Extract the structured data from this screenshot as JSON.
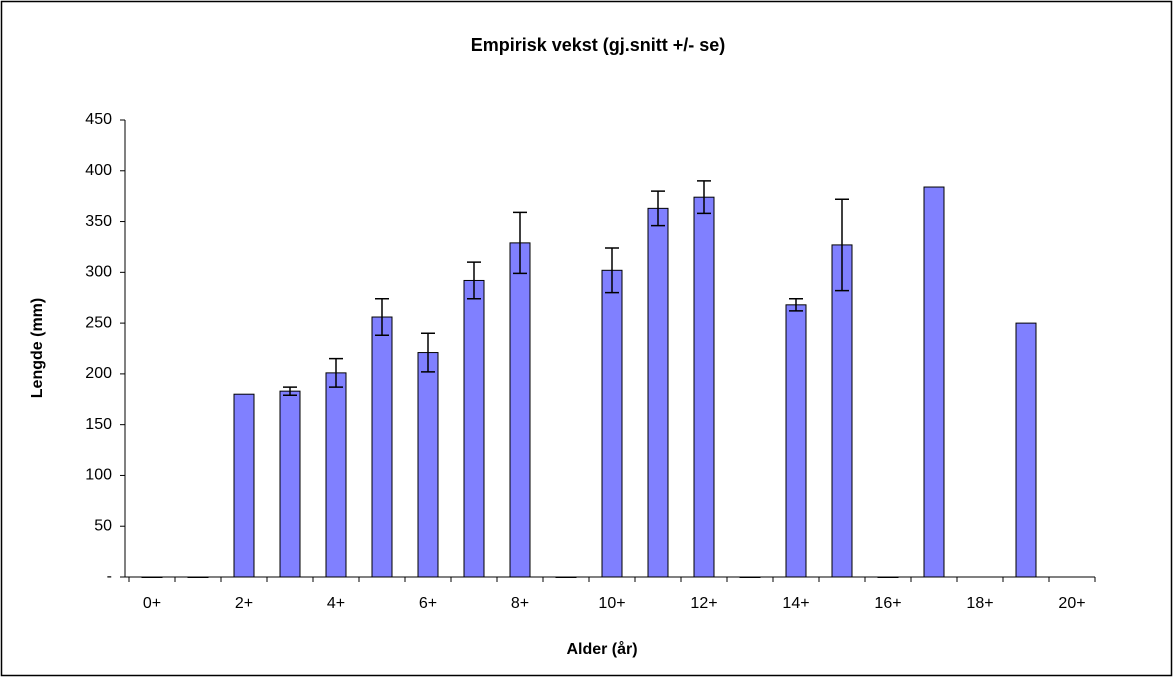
{
  "chart_data": {
    "type": "bar",
    "title": "Empirisk vekst (gj.snitt +/- se)",
    "x_label": "Alder (år)",
    "y_label": "Lengde (mm)",
    "categories": [
      "0+",
      null,
      "2+",
      null,
      "4+",
      null,
      "6+",
      null,
      "8+",
      null,
      "10+",
      null,
      "12+",
      null,
      "14+",
      null,
      "16+",
      null,
      "18+",
      null,
      "20+"
    ],
    "values": [
      0,
      0,
      180,
      183,
      201,
      256,
      221,
      292,
      329,
      0,
      302,
      363,
      374,
      0,
      268,
      327,
      0,
      384,
      null,
      250,
      null
    ],
    "errors": [
      null,
      null,
      null,
      4,
      14,
      18,
      19,
      18,
      30,
      null,
      22,
      17,
      16,
      null,
      6,
      45,
      null,
      null,
      null,
      null,
      null
    ],
    "color": "#8080ff",
    "ylim": [
      0,
      450
    ],
    "yticks": [
      {
        "value": 0,
        "label": "-"
      },
      50,
      100,
      150,
      200,
      250,
      300,
      350,
      400,
      450
    ]
  }
}
